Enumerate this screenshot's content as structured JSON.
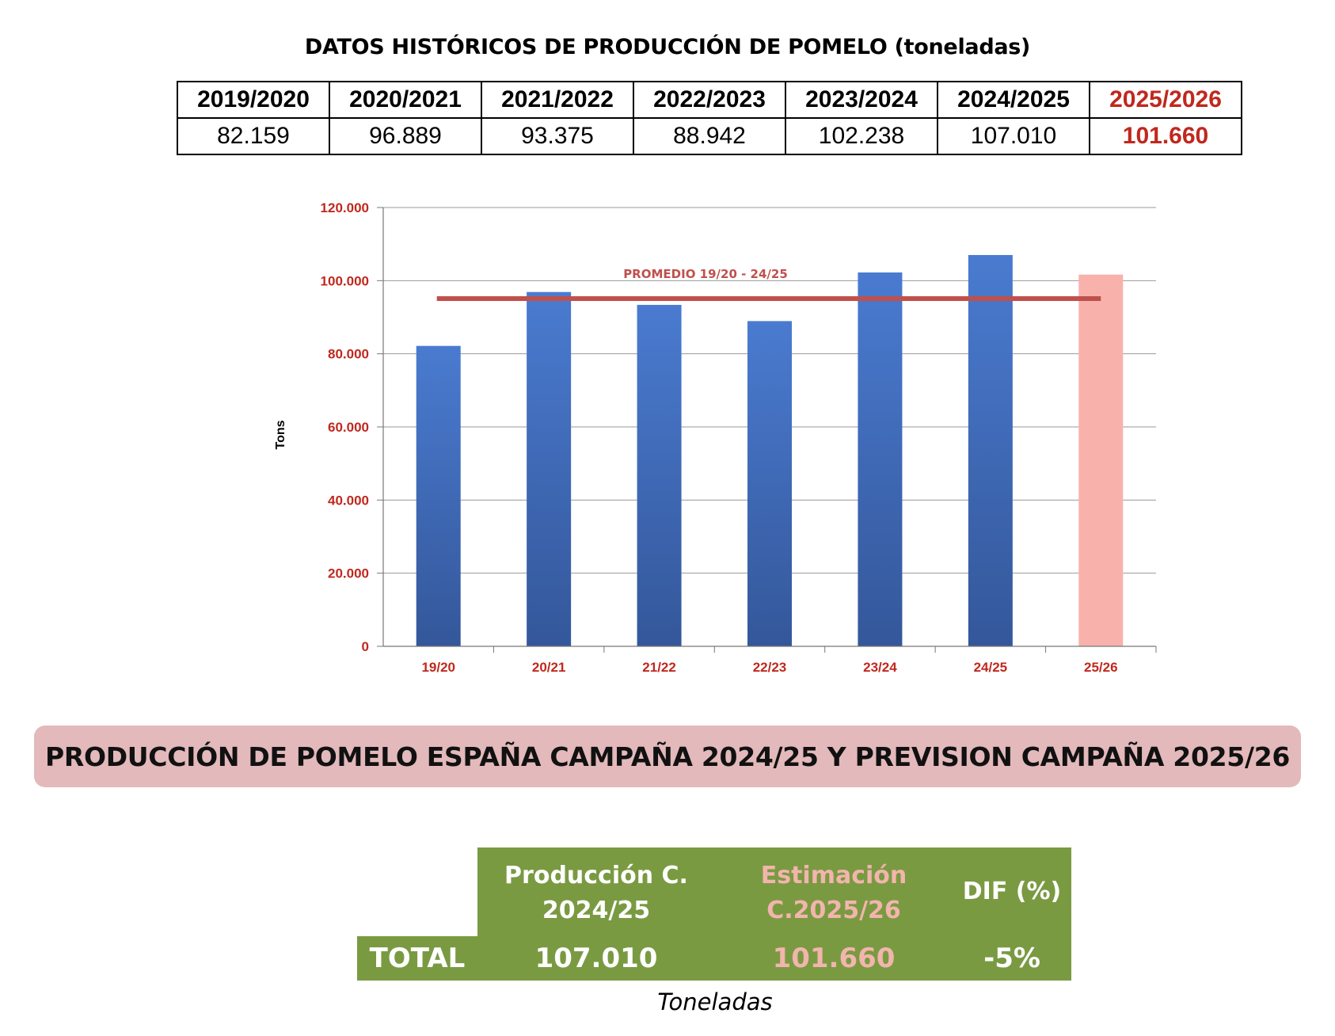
{
  "header": {
    "title": "DATOS HISTÓRICOS DE PRODUCCIÓN DE POMELO (toneladas)"
  },
  "history_table": {
    "years": [
      "2019/2020",
      "2020/2021",
      "2021/2022",
      "2022/2023",
      "2023/2024",
      "2024/2025",
      "2025/2026"
    ],
    "values": [
      "82.159",
      "96.889",
      "93.375",
      "88.942",
      "102.238",
      "107.010",
      "101.660"
    ]
  },
  "chart_data": {
    "type": "bar",
    "categories": [
      "19/20",
      "20/21",
      "21/22",
      "22/23",
      "23/24",
      "24/25",
      "25/26"
    ],
    "values": [
      82159,
      96889,
      93375,
      88942,
      102238,
      107010,
      101660
    ],
    "highlight_last": true,
    "ylabel": "Tons",
    "ylim": [
      0,
      120000
    ],
    "yticks": [
      0,
      20000,
      40000,
      60000,
      80000,
      100000,
      120000
    ],
    "ytick_labels": [
      "0",
      "20.000",
      "40.000",
      "60.000",
      "80.000",
      "100.000",
      "120.000"
    ],
    "grid": true,
    "average_line": {
      "label": "PROMEDIO 19/20 - 24/25",
      "value": 95102
    },
    "colors": {
      "bar": "#4472c4",
      "bar_dark": "#2f5597",
      "bar_highlight": "#f8b2ab",
      "average_line": "#c0504d",
      "tick_labels": "#c0281e"
    }
  },
  "banner": {
    "text": "PRODUCCIÓN DE POMELO ESPAÑA CAMPAÑA 2024/25 Y PREVISION CAMPAÑA 2025/26"
  },
  "summary": {
    "col1_line1": "Producción C.",
    "col1_line2": "2024/25",
    "col2_line1": "Estimación",
    "col2_line2": "C.2025/26",
    "col3": "DIF (%)",
    "row_label": "TOTAL",
    "val1": "107.010",
    "val2": "101.660",
    "val3": "-5%",
    "unit": "Toneladas"
  }
}
